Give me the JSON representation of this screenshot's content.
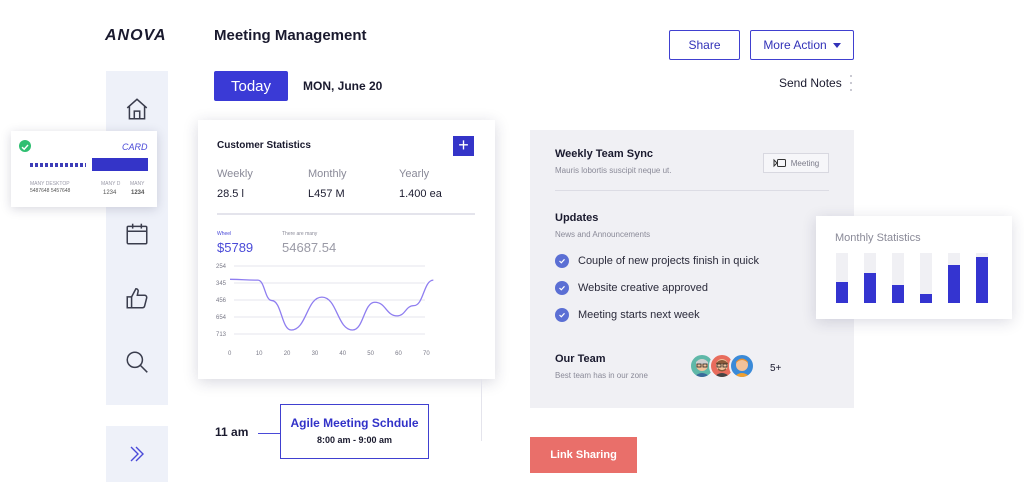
{
  "app": {
    "logo": "ANOVA",
    "title": "Meeting Management"
  },
  "header": {
    "share_label": "Share",
    "more_action_label": "More Action",
    "today_label": "Today",
    "date_label": "MON, June 20",
    "send_notes_label": "Send Notes"
  },
  "sidebar": {
    "items": [
      {
        "icon": "home-icon"
      },
      {
        "icon": "calendar-icon"
      },
      {
        "icon": "thumbs-up-icon"
      },
      {
        "icon": "search-icon"
      }
    ],
    "expand_icon": "double-chevron-right-icon"
  },
  "card_widget": {
    "label": "CARD",
    "left_caption": "MANY DESKTOP",
    "left_nums": "5487648  5457648",
    "mid_caption": "MANY D",
    "mid_num": "1234",
    "right_caption": "MANY",
    "right_num": "1234"
  },
  "customer_stats": {
    "title": "Customer Statistics",
    "columns": [
      {
        "label": "Weekly",
        "value": "28.5 l"
      },
      {
        "label": "Monthly",
        "value": "L457 M"
      },
      {
        "label": "Yearly",
        "value": "1.400 ea"
      }
    ],
    "wheel_label": "Wheel",
    "wheel_value": "$5789",
    "many_label": "There are many",
    "many_value": "54687.54",
    "chart_data": {
      "type": "line",
      "x": [
        0,
        10,
        20,
        30,
        40,
        50,
        60,
        70
      ],
      "y_ticks": [
        "254",
        "345",
        "456",
        "654",
        "713"
      ],
      "x_ticks": [
        "0",
        "10",
        "20",
        "30",
        "40",
        "50",
        "60",
        "70"
      ],
      "series": [
        {
          "points": [
            [
              0,
              345
            ],
            [
              10,
              350
            ],
            [
              15,
              470
            ],
            [
              22,
              660
            ],
            [
              33,
              450
            ],
            [
              44,
              690
            ],
            [
              52,
              480
            ],
            [
              60,
              560
            ],
            [
              66,
              500
            ],
            [
              73,
              350
            ]
          ]
        }
      ]
    }
  },
  "timeline": {
    "time": "11 am",
    "event_title": "Agile Meeting Schdule",
    "event_time": "8:00 am - 9:00 am"
  },
  "team_sync": {
    "title": "Weekly Team Sync",
    "subtitle": "Mauris lobortis suscipit neque ut.",
    "badge_label": "Meeting",
    "updates_title": "Updates",
    "updates_subtitle": "News and Announcements",
    "updates": [
      "Couple of new projects finish in quick",
      "Website creative approved",
      "Meeting starts next week"
    ],
    "team_title": "Our Team",
    "team_subtitle": "Best team has in our zone",
    "team_more": "5+"
  },
  "monthly_stats": {
    "title": "Monthly Statistics",
    "bars": [
      0.42,
      0.6,
      0.36,
      0.18,
      0.76,
      0.92
    ],
    "accent": "#3434d0"
  },
  "link_sharing_label": "Link Sharing",
  "colors": {
    "primary": "#3a3ad6",
    "coral": "#e96f6a",
    "success": "#2fbf71"
  }
}
